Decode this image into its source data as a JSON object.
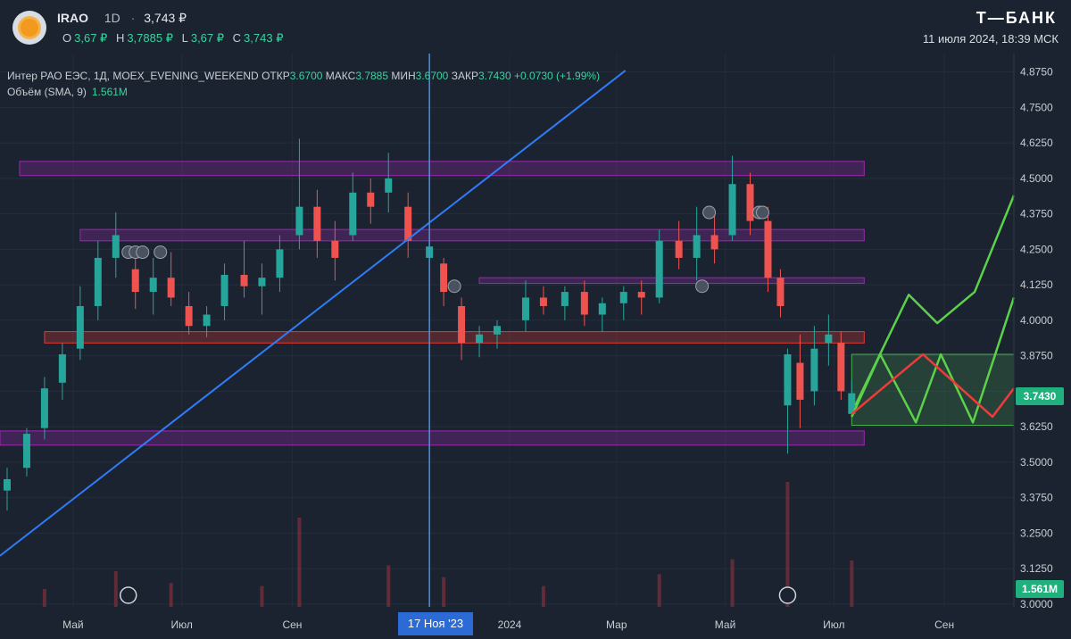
{
  "header": {
    "symbol": "IRAO",
    "timeframe": "1D",
    "sep": "·",
    "last_price": "3,743 ₽",
    "ohlc": [
      {
        "key": "O",
        "value": "3,67 ₽"
      },
      {
        "key": "H",
        "value": "3,7885 ₽"
      },
      {
        "key": "L",
        "value": "3,67 ₽"
      },
      {
        "key": "C",
        "value": "3,743 ₽"
      }
    ],
    "brand": "Т—БАНК",
    "datetime": "11 июля 2024, 18:39 МСК"
  },
  "legend": {
    "main_prefix": "Интер РАО ЕЭС, 1Д, MOEX_EVENING_WEEKEND",
    "fields": [
      {
        "k": "ОТКР",
        "v": "3.6700"
      },
      {
        "k": "МАКС",
        "v": "3.7885"
      },
      {
        "k": "МИН",
        "v": "3.6700"
      },
      {
        "k": "ЗАКР",
        "v": "3.7430"
      }
    ],
    "change": "+0.0730 (+1.99%)",
    "volume_label": "Объём (SMA, 9)",
    "volume_value": "1.561M"
  },
  "tags": {
    "price": "3.7430",
    "volume": "1.561M"
  },
  "colors": {
    "background": "#1b2330",
    "up": "#26a69a",
    "down": "#ef5350",
    "zone_purple": "#9c27b0",
    "zone_red": "#e53935",
    "trendline": "#2f7cf6",
    "forecast_green": "#5bd24a",
    "forecast_red": "#ef3b3b",
    "accent_green": "#1fb07e"
  },
  "chart_data": {
    "type": "candlestick",
    "symbol": "IRAO",
    "yaxis": {
      "ticks": [
        "4.8750",
        "4.7500",
        "4.6250",
        "4.5000",
        "4.3750",
        "4.2500",
        "4.1250",
        "4.0000",
        "3.8750",
        "3.7500",
        "3.6250",
        "3.5000",
        "3.3750",
        "3.2500",
        "3.1250",
        "3.0000"
      ],
      "range": [
        3.0,
        4.9
      ]
    },
    "xaxis": {
      "ticks": [
        "Май",
        "Июл",
        "Сен",
        "17 Ноя '23",
        "2024",
        "Мар",
        "Май",
        "Июл",
        "Сен"
      ],
      "range": [
        "2023-03-21",
        "2024-10-10"
      ]
    },
    "ohlc": [
      {
        "d": "2023-03-25",
        "o": 3.4,
        "h": 3.48,
        "l": 3.33,
        "c": 3.44
      },
      {
        "d": "2023-04-05",
        "o": 3.48,
        "h": 3.62,
        "l": 3.45,
        "c": 3.6
      },
      {
        "d": "2023-04-15",
        "o": 3.62,
        "h": 3.8,
        "l": 3.58,
        "c": 3.76
      },
      {
        "d": "2023-04-25",
        "o": 3.78,
        "h": 3.92,
        "l": 3.72,
        "c": 3.88
      },
      {
        "d": "2023-05-05",
        "o": 3.9,
        "h": 4.12,
        "l": 3.86,
        "c": 4.05
      },
      {
        "d": "2023-05-15",
        "o": 4.05,
        "h": 4.28,
        "l": 4.0,
        "c": 4.22
      },
      {
        "d": "2023-05-25",
        "o": 4.22,
        "h": 4.38,
        "l": 4.15,
        "c": 4.3
      },
      {
        "d": "2023-06-05",
        "o": 4.18,
        "h": 4.25,
        "l": 4.04,
        "c": 4.1
      },
      {
        "d": "2023-06-15",
        "o": 4.1,
        "h": 4.22,
        "l": 4.02,
        "c": 4.15
      },
      {
        "d": "2023-06-25",
        "o": 4.15,
        "h": 4.24,
        "l": 4.05,
        "c": 4.08
      },
      {
        "d": "2023-07-05",
        "o": 4.05,
        "h": 4.1,
        "l": 3.95,
        "c": 3.98
      },
      {
        "d": "2023-07-15",
        "o": 3.98,
        "h": 4.05,
        "l": 3.94,
        "c": 4.02
      },
      {
        "d": "2023-07-25",
        "o": 4.05,
        "h": 4.2,
        "l": 4.0,
        "c": 4.16
      },
      {
        "d": "2023-08-05",
        "o": 4.16,
        "h": 4.28,
        "l": 4.08,
        "c": 4.12
      },
      {
        "d": "2023-08-15",
        "o": 4.12,
        "h": 4.2,
        "l": 4.02,
        "c": 4.15
      },
      {
        "d": "2023-08-25",
        "o": 4.15,
        "h": 4.3,
        "l": 4.1,
        "c": 4.25
      },
      {
        "d": "2023-09-05",
        "o": 4.3,
        "h": 4.64,
        "l": 4.25,
        "c": 4.4
      },
      {
        "d": "2023-09-15",
        "o": 4.4,
        "h": 4.46,
        "l": 4.22,
        "c": 4.28
      },
      {
        "d": "2023-09-25",
        "o": 4.28,
        "h": 4.35,
        "l": 4.14,
        "c": 4.22
      },
      {
        "d": "2023-10-05",
        "o": 4.3,
        "h": 4.52,
        "l": 4.28,
        "c": 4.45
      },
      {
        "d": "2023-10-15",
        "o": 4.45,
        "h": 4.5,
        "l": 4.34,
        "c": 4.4
      },
      {
        "d": "2023-10-25",
        "o": 4.45,
        "h": 4.59,
        "l": 4.38,
        "c": 4.5
      },
      {
        "d": "2023-11-05",
        "o": 4.4,
        "h": 4.45,
        "l": 4.22,
        "c": 4.28
      },
      {
        "d": "2023-11-17",
        "o": 4.22,
        "h": 4.3,
        "l": 4.15,
        "c": 4.26
      },
      {
        "d": "2023-11-25",
        "o": 4.2,
        "h": 4.22,
        "l": 4.05,
        "c": 4.1
      },
      {
        "d": "2023-12-05",
        "o": 4.05,
        "h": 4.08,
        "l": 3.86,
        "c": 3.92
      },
      {
        "d": "2023-12-15",
        "o": 3.92,
        "h": 3.98,
        "l": 3.87,
        "c": 3.95
      },
      {
        "d": "2023-12-25",
        "o": 3.95,
        "h": 4.0,
        "l": 3.9,
        "c": 3.98
      },
      {
        "d": "2024-01-10",
        "o": 4.0,
        "h": 4.14,
        "l": 3.96,
        "c": 4.08
      },
      {
        "d": "2024-01-20",
        "o": 4.08,
        "h": 4.12,
        "l": 4.02,
        "c": 4.05
      },
      {
        "d": "2024-02-01",
        "o": 4.05,
        "h": 4.12,
        "l": 4.0,
        "c": 4.1
      },
      {
        "d": "2024-02-12",
        "o": 4.1,
        "h": 4.14,
        "l": 3.98,
        "c": 4.02
      },
      {
        "d": "2024-02-22",
        "o": 4.02,
        "h": 4.08,
        "l": 3.96,
        "c": 4.06
      },
      {
        "d": "2024-03-05",
        "o": 4.06,
        "h": 4.12,
        "l": 4.0,
        "c": 4.1
      },
      {
        "d": "2024-03-15",
        "o": 4.1,
        "h": 4.14,
        "l": 4.02,
        "c": 4.08
      },
      {
        "d": "2024-03-25",
        "o": 4.08,
        "h": 4.32,
        "l": 4.06,
        "c": 4.28
      },
      {
        "d": "2024-04-05",
        "o": 4.28,
        "h": 4.35,
        "l": 4.18,
        "c": 4.22
      },
      {
        "d": "2024-04-15",
        "o": 4.22,
        "h": 4.4,
        "l": 4.14,
        "c": 4.3
      },
      {
        "d": "2024-04-25",
        "o": 4.3,
        "h": 4.38,
        "l": 4.2,
        "c": 4.25
      },
      {
        "d": "2024-05-05",
        "o": 4.3,
        "h": 4.58,
        "l": 4.28,
        "c": 4.48
      },
      {
        "d": "2024-05-15",
        "o": 4.48,
        "h": 4.52,
        "l": 4.3,
        "c": 4.35
      },
      {
        "d": "2024-05-25",
        "o": 4.35,
        "h": 4.4,
        "l": 4.1,
        "c": 4.15
      },
      {
        "d": "2024-06-01",
        "o": 4.15,
        "h": 4.18,
        "l": 4.01,
        "c": 4.05
      },
      {
        "d": "2024-06-05",
        "o": 3.7,
        "h": 3.9,
        "l": 3.53,
        "c": 3.88
      },
      {
        "d": "2024-06-12",
        "o": 3.85,
        "h": 3.95,
        "l": 3.62,
        "c": 3.72
      },
      {
        "d": "2024-06-20",
        "o": 3.75,
        "h": 3.98,
        "l": 3.7,
        "c": 3.9
      },
      {
        "d": "2024-06-28",
        "o": 3.92,
        "h": 4.02,
        "l": 3.84,
        "c": 3.95
      },
      {
        "d": "2024-07-05",
        "o": 3.92,
        "h": 3.96,
        "l": 3.72,
        "c": 3.75
      },
      {
        "d": "2024-07-11",
        "o": 3.67,
        "h": 3.7885,
        "l": 3.67,
        "c": 3.743
      }
    ],
    "volume": [
      {
        "d": "2023-04-15",
        "v": 0.6
      },
      {
        "d": "2023-05-25",
        "v": 1.2
      },
      {
        "d": "2023-06-25",
        "v": 0.8
      },
      {
        "d": "2023-08-15",
        "v": 0.7
      },
      {
        "d": "2023-09-05",
        "v": 3.0
      },
      {
        "d": "2023-10-25",
        "v": 1.4
      },
      {
        "d": "2023-11-25",
        "v": 1.0
      },
      {
        "d": "2024-01-20",
        "v": 0.7
      },
      {
        "d": "2024-03-25",
        "v": 1.1
      },
      {
        "d": "2024-05-05",
        "v": 1.6
      },
      {
        "d": "2024-06-05",
        "v": 4.2
      },
      {
        "d": "2024-07-11",
        "v": 1.561
      }
    ],
    "zones": [
      {
        "color": "purple",
        "low": 4.51,
        "high": 4.56,
        "from": "2023-04-01",
        "to": "2024-07-18"
      },
      {
        "color": "purple",
        "low": 4.28,
        "high": 4.32,
        "from": "2023-05-05",
        "to": "2024-07-18"
      },
      {
        "color": "purple",
        "low": 4.13,
        "high": 4.15,
        "from": "2023-12-15",
        "to": "2024-07-18"
      },
      {
        "color": "red",
        "low": 3.92,
        "high": 3.96,
        "from": "2023-04-15",
        "to": "2024-07-18"
      },
      {
        "color": "purple",
        "low": 3.56,
        "high": 3.61,
        "from": "2023-03-21",
        "to": "2024-07-18"
      }
    ],
    "box": {
      "low": 3.63,
      "high": 3.88,
      "from": "2024-07-11",
      "to": "2024-10-10"
    },
    "trendline": [
      {
        "d": "2023-03-21",
        "p": 3.17
      },
      {
        "d": "2024-03-06",
        "p": 4.88
      }
    ],
    "vline": "2023-11-17",
    "forecast_green": [
      {
        "d": "2024-07-11",
        "p": 3.66
      },
      {
        "d": "2024-07-27",
        "p": 3.88
      },
      {
        "d": "2024-08-16",
        "p": 3.64
      },
      {
        "d": "2024-08-30",
        "p": 3.88
      },
      {
        "d": "2024-09-17",
        "p": 3.64
      },
      {
        "d": "2024-10-10",
        "p": 4.08
      }
    ],
    "forecast_green2": [
      {
        "d": "2024-07-13",
        "p": 3.7
      },
      {
        "d": "2024-08-12",
        "p": 4.09
      },
      {
        "d": "2024-08-28",
        "p": 3.99
      },
      {
        "d": "2024-09-18",
        "p": 4.1
      },
      {
        "d": "2024-10-10",
        "p": 4.44
      }
    ],
    "forecast_red": [
      {
        "d": "2024-07-11",
        "p": 3.67
      },
      {
        "d": "2024-08-20",
        "p": 3.88
      },
      {
        "d": "2024-09-28",
        "p": 3.66
      },
      {
        "d": "2024-10-10",
        "p": 3.76
      }
    ],
    "markers_i": [
      "2023-06-01",
      "2023-06-05",
      "2023-06-09",
      "2023-06-19",
      "2023-12-01",
      "2024-04-18",
      "2024-04-22",
      "2024-05-20",
      "2024-05-22"
    ],
    "markers_d": [
      "2023-06-01",
      "2024-06-05"
    ]
  }
}
